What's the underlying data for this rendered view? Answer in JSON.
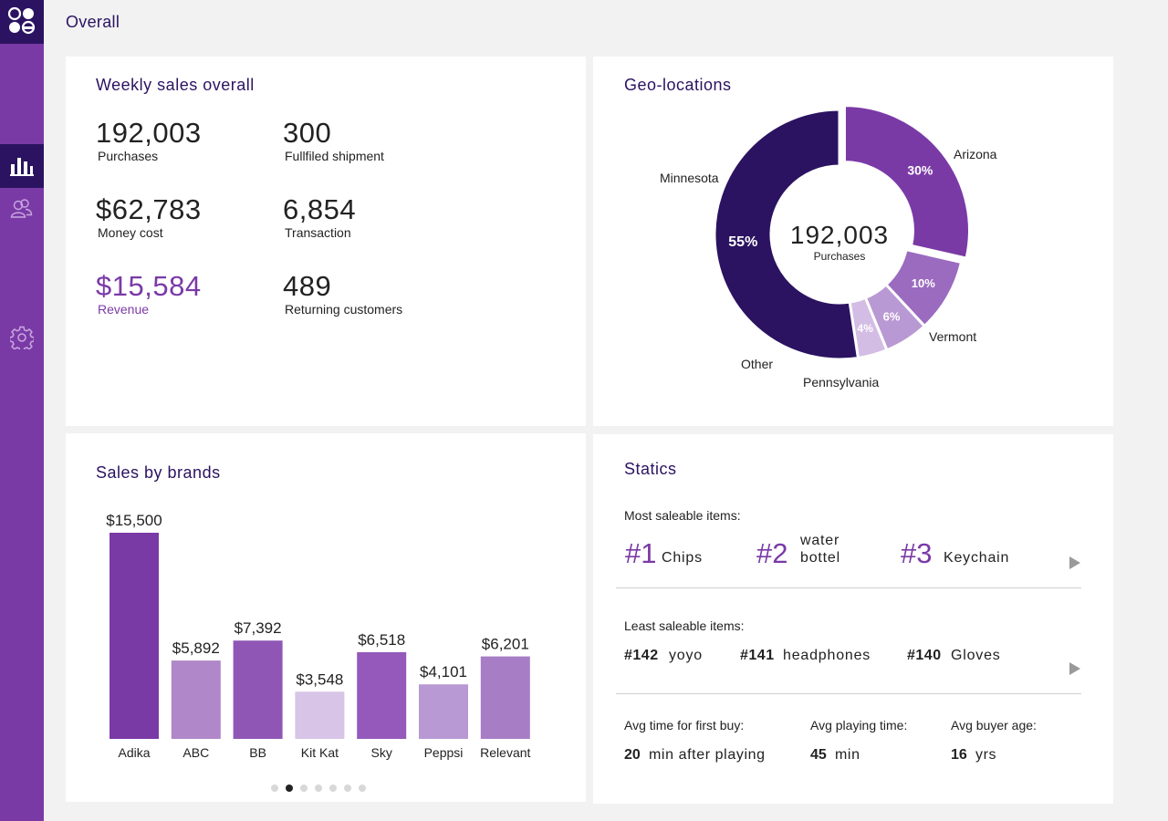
{
  "page": {
    "title": "Overall"
  },
  "sidebar": {
    "logo": "brand-logo-icon",
    "items": [
      {
        "name": "bar-chart-icon",
        "active": true
      },
      {
        "name": "users-icon",
        "active": false
      },
      {
        "name": "gear-icon",
        "active": false
      }
    ]
  },
  "weekly": {
    "title": "Weekly sales overall",
    "stats": [
      {
        "value": "192,003",
        "label": "Purchases"
      },
      {
        "value": "300",
        "label": "Fullfiled shipment"
      },
      {
        "value": "$62,783",
        "label": "Money cost"
      },
      {
        "value": "6,854",
        "label": "Transaction"
      },
      {
        "value": "$15,584",
        "label": "Revenue"
      },
      {
        "value": "489",
        "label": "Returning customers"
      }
    ]
  },
  "geo": {
    "title": "Geo-locations",
    "center_value": "192,003",
    "center_label": "Purchases",
    "slices": [
      {
        "name": "Arizona",
        "value": 30,
        "color": "#7a3aa6",
        "pct_label": "30%"
      },
      {
        "name": "Vermont",
        "value": 10,
        "color": "#9b6bc0",
        "pct_label": "10%"
      },
      {
        "name": "Pennsylvania",
        "value": 6,
        "color": "#b999d3",
        "pct_label": "6%"
      },
      {
        "name": "Other",
        "value": 4,
        "color": "#d3bde5",
        "pct_label": "4%"
      },
      {
        "name": "Minnesota",
        "value": 55,
        "color": "#2b1361",
        "pct_label": "55%"
      }
    ]
  },
  "brands": {
    "title": "Sales by brands",
    "chart_data": {
      "type": "bar",
      "title": "Sales by brands",
      "categories": [
        "Adika",
        "ABC",
        "BB",
        "Kit Kat",
        "Sky",
        "Peppsi",
        "Relevant"
      ],
      "values": [
        15500,
        5892,
        7392,
        3548,
        6518,
        4101,
        6201
      ],
      "value_labels": [
        "$15,500",
        "$5,892",
        "$7,392",
        "$3,548",
        "$6,518",
        "$4,101",
        "$6,201"
      ],
      "colors": [
        "#7a3aa6",
        "#b087c8",
        "#8f56b6",
        "#d8c4e6",
        "#9459bb",
        "#b899d3",
        "#a77dc5"
      ],
      "ylim": [
        0,
        15500
      ]
    },
    "pager": {
      "count": 7,
      "active": 1
    }
  },
  "statics": {
    "title": "Statics",
    "most_label": "Most saleable items:",
    "most": [
      {
        "rank": "#1",
        "name": "Chips"
      },
      {
        "rank": "#2",
        "name_line1": "water",
        "name_line2": "bottel"
      },
      {
        "rank": "#3",
        "name": "Keychain"
      }
    ],
    "least_label": "Least saleable items:",
    "least": [
      {
        "rank": "#142",
        "name": "yoyo"
      },
      {
        "rank": "#141",
        "name": "headphones"
      },
      {
        "rank": "#140",
        "name": "Gloves"
      }
    ],
    "avgs": [
      {
        "label": "Avg time for first buy:",
        "num": "20",
        "unit": "min after playing"
      },
      {
        "label": "Avg playing time:",
        "num": "45",
        "unit": "min"
      },
      {
        "label": "Avg buyer age:",
        "num": "16",
        "unit": "yrs"
      }
    ]
  }
}
